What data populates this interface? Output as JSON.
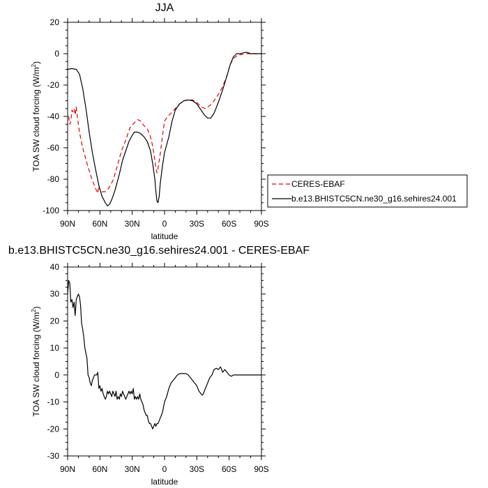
{
  "chart_data": [
    {
      "type": "line",
      "title": "JJA",
      "xlabel": "latitude",
      "ylabel": "TOA SW cloud forcing (W/m",
      "ylabel_sup": "2",
      "ylabel_end": ")",
      "xlim": [
        90,
        -90
      ],
      "ylim": [
        -100,
        20
      ],
      "xticks": [
        90,
        60,
        30,
        0,
        -30,
        -60,
        -90
      ],
      "xtick_labels": [
        "90N",
        "60N",
        "30N",
        "0",
        "30S",
        "60S",
        "90S"
      ],
      "yticks": [
        20,
        0,
        -20,
        -40,
        -60,
        -80,
        -100
      ],
      "ytick_labels": [
        "20",
        "0",
        "-20",
        "-40",
        "-60",
        "-80",
        "-100"
      ],
      "legend_position": "right",
      "series": [
        {
          "name": "CERES-EBAF",
          "color": "#dd0000",
          "dash": "dashed",
          "points": [
            [
              89,
              -40
            ],
            [
              88,
              -45
            ],
            [
              87,
              -43
            ],
            [
              86,
              -36
            ],
            [
              85,
              -37
            ],
            [
              84,
              -35
            ],
            [
              83,
              -39
            ],
            [
              82,
              -34
            ],
            [
              81,
              -40
            ],
            [
              79,
              -50
            ],
            [
              76,
              -60
            ],
            [
              72,
              -70
            ],
            [
              68,
              -79
            ],
            [
              64,
              -86
            ],
            [
              62,
              -89
            ],
            [
              61,
              -84
            ],
            [
              60,
              -87
            ],
            [
              58,
              -88
            ],
            [
              55,
              -88
            ],
            [
              52,
              -86
            ],
            [
              48,
              -81
            ],
            [
              44,
              -72
            ],
            [
              40,
              -62
            ],
            [
              36,
              -55
            ],
            [
              32,
              -47
            ],
            [
              28,
              -44
            ],
            [
              25,
              -42
            ],
            [
              22,
              -43
            ],
            [
              19,
              -46
            ],
            [
              16,
              -48
            ],
            [
              13,
              -53
            ],
            [
              11,
              -59
            ],
            [
              9,
              -68
            ],
            [
              8,
              -73
            ],
            [
              7,
              -76
            ],
            [
              6,
              -73
            ],
            [
              4,
              -64
            ],
            [
              2,
              -53
            ],
            [
              0,
              -43
            ],
            [
              -3,
              -40
            ],
            [
              -6,
              -38
            ],
            [
              -10,
              -35
            ],
            [
              -14,
              -32
            ],
            [
              -18,
              -30
            ],
            [
              -22,
              -29.5
            ],
            [
              -26,
              -29.5
            ],
            [
              -30,
              -31
            ],
            [
              -34,
              -34
            ],
            [
              -38,
              -35
            ],
            [
              -42,
              -33
            ],
            [
              -46,
              -30
            ],
            [
              -50,
              -26
            ],
            [
              -54,
              -21
            ],
            [
              -58,
              -14
            ],
            [
              -61,
              -7
            ],
            [
              -64,
              -3
            ],
            [
              -68,
              -1
            ],
            [
              -72,
              -0.5
            ],
            [
              -76,
              0
            ],
            [
              -80,
              0
            ],
            [
              -84,
              0
            ],
            [
              -90,
              0
            ]
          ]
        },
        {
          "name": "b.e13.BHISTC5CN.ne30_g16.sehires24.001",
          "color": "#000000",
          "dash": "solid",
          "points": [
            [
              90,
              -10
            ],
            [
              86,
              -9.5
            ],
            [
              82,
              -10
            ],
            [
              79,
              -13
            ],
            [
              76,
              -22
            ],
            [
              73,
              -35
            ],
            [
              70,
              -50
            ],
            [
              67,
              -63
            ],
            [
              64,
              -74
            ],
            [
              61,
              -84
            ],
            [
              58,
              -91
            ],
            [
              55,
              -95
            ],
            [
              53,
              -97
            ],
            [
              51,
              -96
            ],
            [
              49,
              -93
            ],
            [
              46,
              -87
            ],
            [
              42,
              -77
            ],
            [
              39,
              -68
            ],
            [
              36,
              -62
            ],
            [
              33,
              -56
            ],
            [
              30,
              -52
            ],
            [
              28,
              -50
            ],
            [
              25,
              -50
            ],
            [
              22,
              -51
            ],
            [
              19,
              -53
            ],
            [
              16,
              -56
            ],
            [
              13,
              -62
            ],
            [
              11,
              -70
            ],
            [
              9,
              -80
            ],
            [
              8,
              -88
            ],
            [
              7,
              -94
            ],
            [
              6,
              -95
            ],
            [
              5,
              -91
            ],
            [
              4,
              -83
            ],
            [
              2,
              -72
            ],
            [
              0,
              -63
            ],
            [
              -2,
              -58
            ],
            [
              -4,
              -53
            ],
            [
              -7,
              -43
            ],
            [
              -10,
              -36
            ],
            [
              -14,
              -32
            ],
            [
              -18,
              -30
            ],
            [
              -22,
              -29.5
            ],
            [
              -26,
              -30
            ],
            [
              -30,
              -32
            ],
            [
              -34,
              -36
            ],
            [
              -37,
              -39
            ],
            [
              -40,
              -41
            ],
            [
              -43,
              -41
            ],
            [
              -46,
              -38
            ],
            [
              -50,
              -31
            ],
            [
              -54,
              -23
            ],
            [
              -58,
              -14
            ],
            [
              -61,
              -7
            ],
            [
              -64,
              -2
            ],
            [
              -67,
              0
            ],
            [
              -70,
              0
            ],
            [
              -73,
              0.5
            ],
            [
              -76,
              1
            ],
            [
              -80,
              0
            ],
            [
              -85,
              0
            ],
            [
              -90,
              0
            ]
          ]
        }
      ]
    },
    {
      "type": "line",
      "title": "b.e13.BHISTC5CN.ne30_g16.sehires24.001 - CERES-EBAF",
      "xlabel": "latitude",
      "ylabel": "TOA SW cloud forcing (W/m",
      "ylabel_sup": "2",
      "ylabel_end": ")",
      "xlim": [
        90,
        -90
      ],
      "ylim": [
        -30,
        40
      ],
      "xticks": [
        90,
        60,
        30,
        0,
        -30,
        -60,
        -90
      ],
      "xtick_labels": [
        "90N",
        "60N",
        "30N",
        "0",
        "30S",
        "60S",
        "90S"
      ],
      "yticks": [
        40,
        30,
        20,
        10,
        0,
        -10,
        -20,
        -30
      ],
      "ytick_labels": [
        "40",
        "30",
        "20",
        "10",
        "0",
        "-10",
        "-20",
        "-30"
      ],
      "series": [
        {
          "color": "#000000",
          "dash": "solid",
          "points": [
            [
              90,
              30
            ],
            [
              89,
              35
            ],
            [
              88,
              34
            ],
            [
              87,
              27
            ],
            [
              86,
              28
            ],
            [
              85,
              25
            ],
            [
              84,
              27
            ],
            [
              83,
              22
            ],
            [
              82,
              28
            ],
            [
              81,
              29
            ],
            [
              80,
              30
            ],
            [
              79,
              29
            ],
            [
              78,
              26
            ],
            [
              77,
              19
            ],
            [
              76,
              17
            ],
            [
              75,
              14
            ],
            [
              74,
              10
            ],
            [
              73,
              8
            ],
            [
              72,
              6
            ],
            [
              71,
              0
            ],
            [
              70,
              -1
            ],
            [
              69,
              -3
            ],
            [
              68,
              -4
            ],
            [
              67,
              -2
            ],
            [
              66,
              -1
            ],
            [
              65,
              0
            ],
            [
              64,
              0
            ],
            [
              63,
              0
            ],
            [
              62,
              1
            ],
            [
              61,
              -5
            ],
            [
              60,
              -4
            ],
            [
              59,
              -6
            ],
            [
              58,
              -5
            ],
            [
              57,
              -7
            ],
            [
              56,
              -8
            ],
            [
              55,
              -9
            ],
            [
              54,
              -8
            ],
            [
              53,
              -6
            ],
            [
              52,
              -7
            ],
            [
              51,
              -6
            ],
            [
              50,
              -7
            ],
            [
              49,
              -8
            ],
            [
              48,
              -6
            ],
            [
              47,
              -7
            ],
            [
              46,
              -8
            ],
            [
              45,
              -6
            ],
            [
              44,
              -9
            ],
            [
              43,
              -8
            ],
            [
              42,
              -9
            ],
            [
              41,
              -7
            ],
            [
              40,
              -8
            ],
            [
              39,
              -6
            ],
            [
              38,
              -7
            ],
            [
              37,
              -8
            ],
            [
              36,
              -9
            ],
            [
              35,
              -8
            ],
            [
              34,
              -7
            ],
            [
              33,
              -6
            ],
            [
              32,
              -7
            ],
            [
              31,
              -6
            ],
            [
              30,
              -7
            ],
            [
              29,
              -5
            ],
            [
              28,
              -9
            ],
            [
              27,
              -8
            ],
            [
              26,
              -9
            ],
            [
              25,
              -8
            ],
            [
              24,
              -9
            ],
            [
              23,
              -7
            ],
            [
              22,
              -9
            ],
            [
              21,
              -10
            ],
            [
              20,
              -11
            ],
            [
              19,
              -13
            ],
            [
              18,
              -14
            ],
            [
              17,
              -15
            ],
            [
              16,
              -15
            ],
            [
              15,
              -17
            ],
            [
              14,
              -18
            ],
            [
              13,
              -18
            ],
            [
              12,
              -19
            ],
            [
              11,
              -20
            ],
            [
              10,
              -19
            ],
            [
              9,
              -18
            ],
            [
              8,
              -19
            ],
            [
              7,
              -18
            ],
            [
              6,
              -18
            ],
            [
              5,
              -17
            ],
            [
              4,
              -16
            ],
            [
              3,
              -15
            ],
            [
              2,
              -14
            ],
            [
              1,
              -12
            ],
            [
              0,
              -10
            ],
            [
              -2,
              -8
            ],
            [
              -4,
              -5
            ],
            [
              -6,
              -3
            ],
            [
              -8,
              -2
            ],
            [
              -10,
              -1
            ],
            [
              -12,
              0
            ],
            [
              -14,
              0.5
            ],
            [
              -16,
              0.5
            ],
            [
              -18,
              0.5
            ],
            [
              -20,
              0.5
            ],
            [
              -22,
              0
            ],
            [
              -24,
              -1
            ],
            [
              -26,
              -2
            ],
            [
              -28,
              -3
            ],
            [
              -30,
              -4
            ],
            [
              -32,
              -6
            ],
            [
              -34,
              -7
            ],
            [
              -35,
              -7.5
            ],
            [
              -36,
              -7
            ],
            [
              -38,
              -5
            ],
            [
              -40,
              -3
            ],
            [
              -42,
              -1
            ],
            [
              -44,
              0
            ],
            [
              -46,
              2
            ],
            [
              -48,
              2.5
            ],
            [
              -50,
              2
            ],
            [
              -52,
              3
            ],
            [
              -54,
              1
            ],
            [
              -56,
              2
            ],
            [
              -58,
              1
            ],
            [
              -60,
              0
            ],
            [
              -62,
              -0.5
            ],
            [
              -64,
              0
            ],
            [
              -66,
              0
            ],
            [
              -70,
              0
            ],
            [
              -75,
              0
            ],
            [
              -80,
              0
            ],
            [
              -85,
              0
            ],
            [
              -90,
              0
            ]
          ]
        }
      ]
    }
  ]
}
